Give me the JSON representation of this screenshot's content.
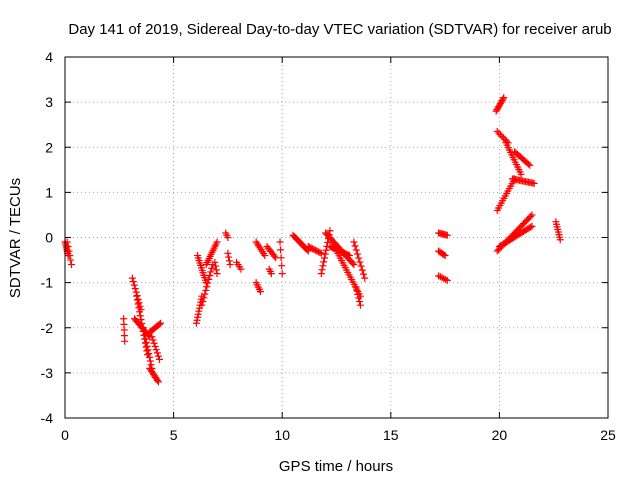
{
  "chart_data": {
    "type": "scatter",
    "title": "Day 141 of 2019, Sidereal Day-to-day VTEC variation (SDTVAR) for receiver arub",
    "xlabel": "GPS time / hours",
    "ylabel": "SDTVAR / TECUs",
    "xlim": [
      0,
      25
    ],
    "ylim": [
      -4,
      4
    ],
    "xticks": [
      0,
      5,
      10,
      15,
      20,
      25
    ],
    "yticks": [
      -4,
      -3,
      -2,
      -1,
      0,
      1,
      2,
      3,
      4
    ],
    "grid": true,
    "marker": "plus",
    "colors": {
      "points": "#ff0000",
      "axes": "#000000",
      "grid": "#a8a8a8",
      "background": "#ffffff"
    },
    "segments": [
      {
        "t0": 0.0,
        "t1": 0.15,
        "y0": -0.1,
        "y1": -0.4,
        "n": 8
      },
      {
        "t0": 0.1,
        "t1": 0.3,
        "y0": -0.1,
        "y1": -0.6,
        "n": 6
      },
      {
        "t0": 2.7,
        "t1": 2.75,
        "y0": -1.8,
        "y1": -2.3,
        "n": 5
      },
      {
        "t0": 3.1,
        "t1": 3.5,
        "y0": -0.9,
        "y1": -1.6,
        "n": 10
      },
      {
        "t0": 3.2,
        "t1": 3.9,
        "y0": -1.8,
        "y1": -2.2,
        "n": 14
      },
      {
        "t0": 3.3,
        "t1": 3.8,
        "y0": -1.3,
        "y1": -2.6,
        "n": 16
      },
      {
        "t0": 3.6,
        "t1": 4.0,
        "y0": -2.0,
        "y1": -2.9,
        "n": 12
      },
      {
        "t0": 3.9,
        "t1": 4.3,
        "y0": -2.9,
        "y1": -3.2,
        "n": 10
      },
      {
        "t0": 3.9,
        "t1": 4.4,
        "y0": -2.1,
        "y1": -1.9,
        "n": 10
      },
      {
        "t0": 4.0,
        "t1": 4.35,
        "y0": -2.2,
        "y1": -2.7,
        "n": 8
      },
      {
        "t0": 6.05,
        "t1": 6.3,
        "y0": -1.9,
        "y1": -1.3,
        "n": 10
      },
      {
        "t0": 6.1,
        "t1": 6.5,
        "y0": -0.4,
        "y1": -1.0,
        "n": 12
      },
      {
        "t0": 6.3,
        "t1": 6.8,
        "y0": -1.5,
        "y1": -0.6,
        "n": 12
      },
      {
        "t0": 6.5,
        "t1": 7.0,
        "y0": -0.6,
        "y1": -0.1,
        "n": 12
      },
      {
        "t0": 6.9,
        "t1": 7.0,
        "y0": -0.55,
        "y1": -0.8,
        "n": 4
      },
      {
        "t0": 7.4,
        "t1": 7.5,
        "y0": 0.1,
        "y1": 0.0,
        "n": 3
      },
      {
        "t0": 7.5,
        "t1": 7.6,
        "y0": -0.35,
        "y1": -0.6,
        "n": 4
      },
      {
        "t0": 7.9,
        "t1": 8.1,
        "y0": -0.55,
        "y1": -0.7,
        "n": 4
      },
      {
        "t0": 8.8,
        "t1": 9.0,
        "y0": -1.0,
        "y1": -1.2,
        "n": 5
      },
      {
        "t0": 8.8,
        "t1": 9.2,
        "y0": -0.1,
        "y1": -0.4,
        "n": 8
      },
      {
        "t0": 9.3,
        "t1": 9.7,
        "y0": -0.2,
        "y1": -0.45,
        "n": 8
      },
      {
        "t0": 9.4,
        "t1": 9.5,
        "y0": -0.7,
        "y1": -0.8,
        "n": 3
      },
      {
        "t0": 9.9,
        "t1": 10.0,
        "y0": -0.1,
        "y1": -0.8,
        "n": 5
      },
      {
        "t0": 10.5,
        "t1": 11.2,
        "y0": 0.05,
        "y1": -0.3,
        "n": 14
      },
      {
        "t0": 11.2,
        "t1": 11.8,
        "y0": -0.2,
        "y1": -0.35,
        "n": 10
      },
      {
        "t0": 11.8,
        "t1": 12.2,
        "y0": -0.8,
        "y1": 0.15,
        "n": 12
      },
      {
        "t0": 12.0,
        "t1": 13.3,
        "y0": 0.1,
        "y1": -0.6,
        "n": 24
      },
      {
        "t0": 12.2,
        "t1": 13.1,
        "y0": -0.2,
        "y1": -0.4,
        "n": 16
      },
      {
        "t0": 12.5,
        "t1": 13.6,
        "y0": -0.3,
        "y1": -1.3,
        "n": 20
      },
      {
        "t0": 13.4,
        "t1": 13.6,
        "y0": -1.1,
        "y1": -1.5,
        "n": 6
      },
      {
        "t0": 13.3,
        "t1": 13.8,
        "y0": -0.1,
        "y1": -0.9,
        "n": 10
      },
      {
        "t0": 17.2,
        "t1": 17.6,
        "y0": 0.1,
        "y1": 0.05,
        "n": 8
      },
      {
        "t0": 17.2,
        "t1": 17.5,
        "y0": -0.3,
        "y1": -0.4,
        "n": 6
      },
      {
        "t0": 17.2,
        "t1": 17.6,
        "y0": -0.85,
        "y1": -0.95,
        "n": 6
      },
      {
        "t0": 19.85,
        "t1": 20.2,
        "y0": 2.8,
        "y1": 3.1,
        "n": 10
      },
      {
        "t0": 19.9,
        "t1": 20.4,
        "y0": 2.35,
        "y1": 2.1,
        "n": 8
      },
      {
        "t0": 19.9,
        "t1": 20.7,
        "y0": 0.6,
        "y1": 1.3,
        "n": 14
      },
      {
        "t0": 20.3,
        "t1": 21.0,
        "y0": 2.1,
        "y1": 1.4,
        "n": 14
      },
      {
        "t0": 20.6,
        "t1": 21.6,
        "y0": 1.3,
        "y1": 1.2,
        "n": 16
      },
      {
        "t0": 20.7,
        "t1": 21.4,
        "y0": 1.9,
        "y1": 1.6,
        "n": 12
      },
      {
        "t0": 19.9,
        "t1": 21.5,
        "y0": -0.3,
        "y1": 0.5,
        "n": 26
      },
      {
        "t0": 20.0,
        "t1": 21.5,
        "y0": -0.2,
        "y1": 0.25,
        "n": 24
      },
      {
        "t0": 22.6,
        "t1": 22.8,
        "y0": 0.35,
        "y1": -0.05,
        "n": 8
      }
    ]
  }
}
